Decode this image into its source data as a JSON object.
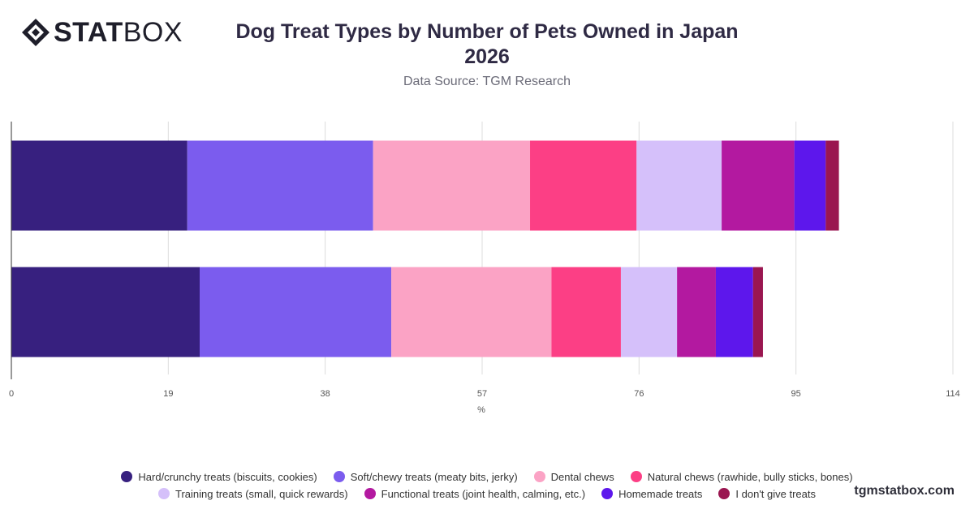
{
  "brand": {
    "logo_bold": "STAT",
    "logo_light": "BOX",
    "url": "tgmstatbox.com"
  },
  "title_line1": "Dog Treat Types by Number of Pets Owned in Japan",
  "title_line2": "2026",
  "subtitle": "Data Source: TGM Research",
  "chart_data": {
    "type": "bar",
    "orientation": "horizontal",
    "stacked": true,
    "title": "Dog Treat Types by Number of Pets Owned in Japan 2026",
    "xlabel": "%",
    "ylabel": "",
    "xlim": [
      0,
      114
    ],
    "xticks": [
      0,
      19,
      38,
      57,
      76,
      95,
      114
    ],
    "grid": true,
    "legend_position": "bottom",
    "categories": [
      "",
      ""
    ],
    "series": [
      {
        "name": "Hard/crunchy treats (biscuits, cookies)",
        "color": "#37207f",
        "values": [
          21.3,
          22.8
        ]
      },
      {
        "name": "Soft/chewy treats (meaty bits, jerky)",
        "color": "#7b5cee",
        "values": [
          22.5,
          23.2
        ]
      },
      {
        "name": "Dental chews",
        "color": "#fba3c5",
        "values": [
          19.0,
          19.4
        ]
      },
      {
        "name": "Natural chews (rawhide, bully sticks, bones)",
        "color": "#fc3f85",
        "values": [
          12.9,
          8.4
        ]
      },
      {
        "name": "Training treats (small, quick rewards)",
        "color": "#d5c0fa",
        "values": [
          10.3,
          6.8
        ]
      },
      {
        "name": "Functional treats (joint health, calming, etc.)",
        "color": "#b319a0",
        "values": [
          8.8,
          4.7
        ]
      },
      {
        "name": "Homemade treats",
        "color": "#5d17ec",
        "values": [
          3.8,
          4.5
        ]
      },
      {
        "name": "I don't give treats",
        "color": "#9a1650",
        "values": [
          1.6,
          1.2
        ]
      }
    ]
  }
}
